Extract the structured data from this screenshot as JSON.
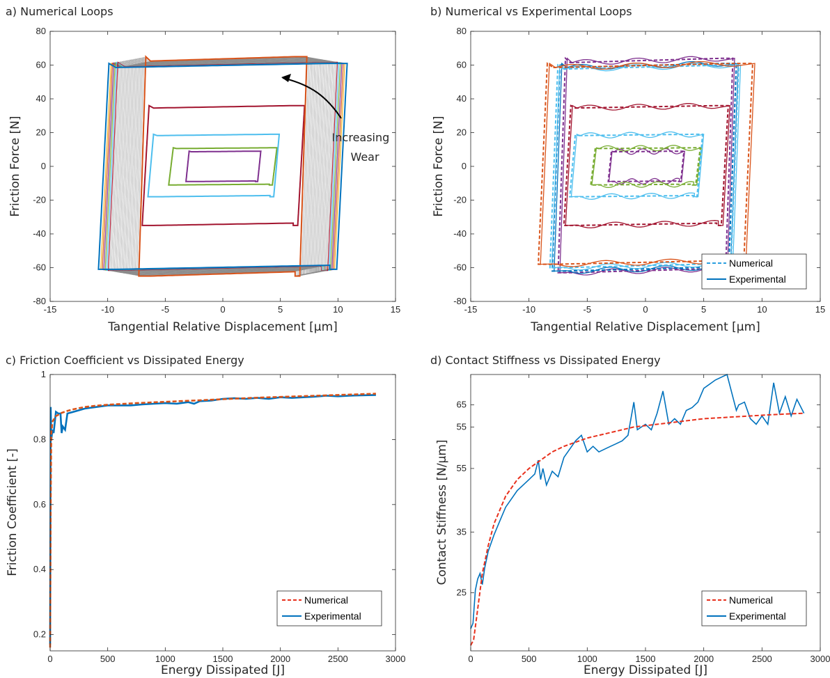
{
  "panels": {
    "a": {
      "title": "a) Numerical Loops",
      "xlabel": "Tangential Relative Displacement [μm]",
      "ylabel": "Friction Force [N]",
      "xticks": [
        "-15",
        "-10",
        "-5",
        "0",
        "5",
        "10",
        "15"
      ],
      "yticks": [
        "-80",
        "-60",
        "-40",
        "-20",
        "0",
        "20",
        "40",
        "60",
        "80"
      ],
      "annotation_line1": "Increasing",
      "annotation_line2": "Wear"
    },
    "b": {
      "title": "b) Numerical vs Experimental Loops",
      "xlabel": "Tangential Relative Displacement [μm]",
      "ylabel": "Friction Force [N]",
      "xticks": [
        "-15",
        "-10",
        "-5",
        "0",
        "5",
        "10",
        "15"
      ],
      "yticks": [
        "-80",
        "-60",
        "-40",
        "-20",
        "0",
        "20",
        "40",
        "60",
        "80"
      ],
      "legend": [
        "Numerical",
        "Experimental"
      ]
    },
    "c": {
      "title": "c) Friction Coefficient vs Dissipated Energy",
      "xlabel": "Energy Dissipated [J]",
      "ylabel": "Friction Coefficient [-]",
      "xticks": [
        "0",
        "500",
        "1000",
        "1500",
        "2000",
        "2500",
        "3000"
      ],
      "yticks": [
        "0.2",
        "0.4",
        "0.6",
        "0.8",
        "1"
      ],
      "legend": [
        "Numerical",
        "Experimental"
      ]
    },
    "d": {
      "title": "d) Contact Stiffness vs Dissipated Energy",
      "xlabel": "Energy Dissipated [J]",
      "ylabel": "Contact Stiffness [N/μm]",
      "xticks": [
        "0",
        "500",
        "1000",
        "1500",
        "2000",
        "2500",
        "3000"
      ],
      "yticks": [
        "25",
        "35",
        "55",
        "55",
        "65"
      ],
      "legend": [
        "Numerical",
        "Experimental"
      ]
    }
  },
  "colors": {
    "blue": "#0072BD",
    "orange": "#D95319",
    "yellow": "#EDB120",
    "purple": "#7E2F8E",
    "green": "#77AC30",
    "cyan": "#4DBEEE",
    "red": "#A2142F",
    "numerical_red": "#E8301C",
    "light_blue": "#2A9FE0"
  },
  "chart_data": [
    {
      "type": "line",
      "title": "a) Numerical Loops",
      "xlabel": "Tangential Relative Displacement [μm]",
      "ylabel": "Friction Force [N]",
      "xlim": [
        -15,
        15
      ],
      "ylim": [
        -80,
        80
      ],
      "series": [
        {
          "color": "#7E2F8E",
          "x_range": [
            -3.2,
            3.3
          ],
          "y_range": [
            -9,
            9
          ]
        },
        {
          "color": "#77AC30",
          "x_range": [
            -4.7,
            4.7
          ],
          "y_range": [
            -11,
            11
          ]
        },
        {
          "color": "#4DBEEE",
          "x_range": [
            -6.5,
            4.9
          ],
          "y_range": [
            -18,
            19
          ]
        },
        {
          "color": "#A2142F",
          "x_range": [
            -7,
            7.1
          ],
          "y_range": [
            -35,
            36
          ]
        },
        {
          "color": "#D95319",
          "x_range": [
            -7.3,
            7.3
          ],
          "y_range": [
            -65,
            65
          ]
        },
        {
          "color": "#0072BD",
          "x_range": [
            -10.8,
            10.8
          ],
          "y_range": [
            -61,
            61
          ]
        }
      ],
      "annotations": [
        "Increasing",
        "Wear"
      ]
    },
    {
      "type": "line",
      "title": "b) Numerical vs Experimental Loops",
      "xlabel": "Tangential Relative Displacement [μm]",
      "ylabel": "Friction Force [N]",
      "xlim": [
        -15,
        15
      ],
      "ylim": [
        -80,
        80
      ],
      "legend": [
        "Numerical",
        "Experimental"
      ],
      "legend_position": "bottom-right",
      "series": [
        {
          "color": "#7E2F8E",
          "x_range": [
            -3.2,
            3.3
          ],
          "y_range": [
            -9,
            9
          ]
        },
        {
          "color": "#77AC30",
          "x_range": [
            -4.7,
            4.7
          ],
          "y_range": [
            -11,
            11
          ]
        },
        {
          "color": "#4DBEEE",
          "x_range": [
            -6.5,
            4.9
          ],
          "y_range": [
            -18,
            19
          ]
        },
        {
          "color": "#A2142F",
          "x_range": [
            -7,
            7.1
          ],
          "y_range": [
            -35,
            36
          ]
        },
        {
          "color": "#7E2F8E",
          "x_range": [
            -7.5,
            7.5
          ],
          "y_range": [
            -63,
            64
          ]
        },
        {
          "color": "#0072BD",
          "x_range": [
            -8,
            7.8
          ],
          "y_range": [
            -62,
            61
          ]
        },
        {
          "color": "#4DBEEE",
          "x_range": [
            -8.2,
            8
          ],
          "y_range": [
            -60,
            60
          ]
        },
        {
          "color": "#D95319",
          "x_range": [
            -9.2,
            9.2
          ],
          "y_range": [
            -58,
            61
          ]
        }
      ]
    },
    {
      "type": "line",
      "title": "c) Friction Coefficient vs Dissipated Energy",
      "xlabel": "Energy Dissipated [J]",
      "ylabel": "Friction Coefficient [-]",
      "xlim": [
        0,
        3000
      ],
      "ylim": [
        0.15,
        1
      ],
      "legend": [
        "Numerical",
        "Experimental"
      ],
      "legend_position": "bottom-right",
      "series": [
        {
          "name": "Numerical",
          "x": [
            0,
            5,
            10,
            20,
            50,
            100,
            150,
            200,
            300,
            400,
            500,
            750,
            1000,
            1250,
            1500,
            1750,
            2000,
            2250,
            2500,
            2750,
            2830
          ],
          "y": [
            0.16,
            0.6,
            0.82,
            0.855,
            0.872,
            0.882,
            0.888,
            0.893,
            0.9,
            0.904,
            0.907,
            0.912,
            0.916,
            0.92,
            0.924,
            0.928,
            0.931,
            0.934,
            0.937,
            0.94,
            0.941
          ]
        },
        {
          "name": "Experimental",
          "x": [
            0,
            5,
            10,
            20,
            30,
            50,
            70,
            90,
            100,
            110,
            130,
            150,
            200,
            300,
            400,
            500,
            600,
            700,
            800,
            900,
            1000,
            1100,
            1200,
            1250,
            1300,
            1400,
            1500,
            1600,
            1700,
            1800,
            1900,
            2000,
            2100,
            2200,
            2300,
            2400,
            2500,
            2600,
            2700,
            2830
          ],
          "y": [
            0.17,
            0.9,
            0.8,
            0.83,
            0.82,
            0.885,
            0.88,
            0.88,
            0.82,
            0.84,
            0.83,
            0.88,
            0.885,
            0.895,
            0.9,
            0.905,
            0.905,
            0.905,
            0.908,
            0.91,
            0.912,
            0.91,
            0.915,
            0.91,
            0.918,
            0.92,
            0.925,
            0.927,
            0.925,
            0.928,
            0.925,
            0.93,
            0.928,
            0.93,
            0.932,
            0.935,
            0.933,
            0.935,
            0.936,
            0.937
          ]
        }
      ]
    },
    {
      "type": "line",
      "title": "d) Contact Stiffness vs Dissipated Energy",
      "xlabel": "Energy Dissipated [J]",
      "ylabel": "Contact Stiffness [N/μm]",
      "xlim": [
        0,
        3000
      ],
      "ytick_labels": [
        "25",
        "35",
        "55",
        "55",
        "65"
      ],
      "legend": [
        "Numerical",
        "Experimental"
      ],
      "legend_position": "bottom-right",
      "series": [
        {
          "name": "Numerical",
          "x": [
            0,
            25,
            50,
            100,
            150,
            200,
            300,
            400,
            500,
            600,
            700,
            800,
            1000,
            1200,
            1400,
            1600,
            1800,
            2000,
            2200,
            2400,
            2600,
            2860
          ],
          "y": [
            0.02,
            0.04,
            0.12,
            0.28,
            0.38,
            0.46,
            0.56,
            0.62,
            0.66,
            0.69,
            0.72,
            0.74,
            0.77,
            0.79,
            0.81,
            0.82,
            0.83,
            0.84,
            0.845,
            0.85,
            0.855,
            0.86
          ]
        },
        {
          "name": "Experimental",
          "x": [
            0,
            20,
            40,
            60,
            80,
            100,
            120,
            150,
            200,
            250,
            300,
            350,
            400,
            450,
            500,
            550,
            580,
            600,
            620,
            650,
            700,
            750,
            800,
            900,
            950,
            1000,
            1050,
            1100,
            1150,
            1200,
            1250,
            1300,
            1350,
            1400,
            1430,
            1500,
            1550,
            1600,
            1650,
            1700,
            1750,
            1800,
            1850,
            1900,
            1950,
            2000,
            2100,
            2200,
            2280,
            2300,
            2350,
            2400,
            2450,
            2500,
            2550,
            2600,
            2650,
            2700,
            2750,
            2800,
            2860
          ],
          "y": [
            0.08,
            0.1,
            0.22,
            0.26,
            0.28,
            0.24,
            0.3,
            0.36,
            0.42,
            0.47,
            0.52,
            0.55,
            0.58,
            0.6,
            0.62,
            0.64,
            0.69,
            0.62,
            0.66,
            0.6,
            0.65,
            0.63,
            0.7,
            0.76,
            0.78,
            0.72,
            0.74,
            0.72,
            0.73,
            0.74,
            0.75,
            0.76,
            0.78,
            0.9,
            0.8,
            0.82,
            0.8,
            0.86,
            0.94,
            0.82,
            0.84,
            0.82,
            0.87,
            0.88,
            0.9,
            0.95,
            0.98,
            1.0,
            0.87,
            0.89,
            0.9,
            0.84,
            0.82,
            0.85,
            0.82,
            0.97,
            0.86,
            0.92,
            0.85,
            0.91,
            0.86
          ]
        }
      ]
    }
  ]
}
